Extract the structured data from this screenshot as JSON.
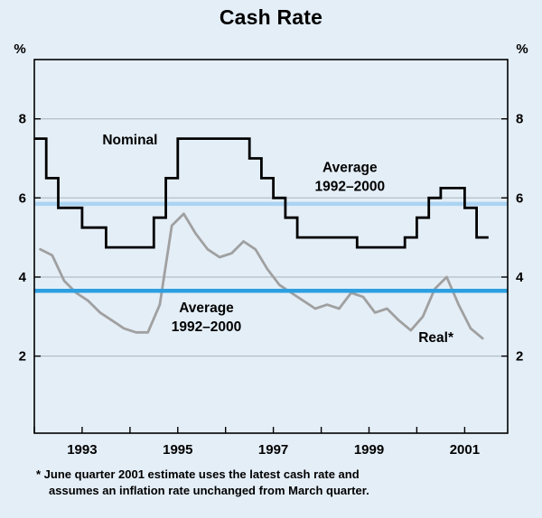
{
  "chart_data": {
    "type": "line",
    "title": "Cash Rate",
    "unit_label": "%",
    "x_start": 1992.0,
    "x_step": 0.25,
    "xlim": [
      1992.0,
      2001.9
    ],
    "ylim": [
      0.05,
      9.5
    ],
    "yticks": [
      2,
      4,
      6,
      8
    ],
    "year_ticks": [
      1992,
      1993,
      1994,
      1995,
      1996,
      1997,
      1998,
      1999,
      2000,
      2001
    ],
    "xtick_labels": [
      1993,
      1995,
      1997,
      1999,
      2001
    ],
    "colors": {
      "background": "#e4eef7",
      "grid": "#a9b2ba",
      "frame": "#000000",
      "nominal": "#000000",
      "real": "#a0a0a0",
      "average_nominal": "#abd4f2",
      "average_real": "#2d9fe0",
      "text": "#000000"
    },
    "series": [
      {
        "name": "Nominal",
        "style": "step",
        "color_key": "nominal",
        "width": 2.8,
        "values": [
          7.5,
          6.5,
          5.75,
          5.75,
          5.25,
          5.25,
          4.75,
          4.75,
          4.75,
          4.75,
          5.5,
          6.5,
          7.5,
          7.5,
          7.5,
          7.5,
          7.5,
          7.5,
          7.0,
          6.5,
          6.0,
          5.5,
          5.0,
          5.0,
          5.0,
          5.0,
          5.0,
          4.75,
          4.75,
          4.75,
          4.75,
          5.0,
          5.5,
          6.0,
          6.25,
          6.25,
          5.75,
          5.0
        ]
      },
      {
        "name": "Real",
        "style": "line",
        "color_key": "real",
        "width": 2.8,
        "values": [
          4.7,
          4.55,
          3.9,
          3.6,
          3.4,
          3.1,
          2.9,
          2.7,
          2.6,
          2.6,
          3.3,
          5.3,
          5.6,
          5.1,
          4.7,
          4.5,
          4.6,
          4.9,
          4.7,
          4.2,
          3.8,
          3.6,
          3.4,
          3.2,
          3.3,
          3.2,
          3.6,
          3.5,
          3.1,
          3.2,
          2.9,
          2.65,
          3.0,
          3.7,
          4.0,
          3.3,
          2.7,
          2.45
        ]
      }
    ],
    "averages": [
      {
        "name": "Nominal average 1992–2000",
        "value": 5.85,
        "color_key": "average_nominal",
        "width": 4.5
      },
      {
        "name": "Real average 1992–2000",
        "value": 3.65,
        "color_key": "average_real",
        "width": 4.5
      }
    ],
    "annotations": [
      {
        "id": "nominal-label",
        "lines": [
          "Nominal"
        ],
        "x": 1994.0,
        "y": 7.45
      },
      {
        "id": "average-nominal-label",
        "lines": [
          "Average",
          "1992–2000"
        ],
        "x": 1998.6,
        "y": 6.75
      },
      {
        "id": "average-real-label",
        "lines": [
          "Average",
          "1992–2000"
        ],
        "x": 1995.6,
        "y": 3.2
      },
      {
        "id": "real-label",
        "lines": [
          "Real*"
        ],
        "x": 2000.4,
        "y": 2.45
      }
    ],
    "footnote_lines": [
      "* June quarter 2001 estimate uses the latest cash rate and",
      "assumes an inflation rate unchanged from March quarter."
    ]
  }
}
